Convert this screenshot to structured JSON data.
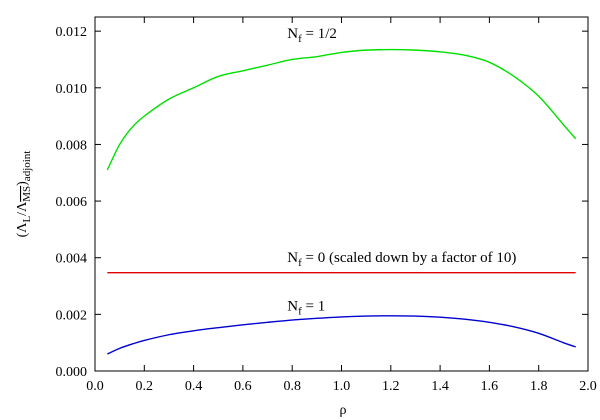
{
  "chart_data": {
    "type": "line",
    "xlabel": "ρ",
    "ylabel": "(Λ_L/Λ_MS)_adjoint",
    "xlim": [
      0.0,
      2.0
    ],
    "ylim": [
      0.0,
      0.0125
    ],
    "x_ticks": [
      "0.0",
      "0.2",
      "0.4",
      "0.6",
      "0.8",
      "1.0",
      "1.2",
      "1.4",
      "1.6",
      "1.8",
      "2.0"
    ],
    "y_ticks": [
      "0.000",
      "0.002",
      "0.004",
      "0.006",
      "0.008",
      "0.010",
      "0.012"
    ],
    "x_tick_values": [
      0.0,
      0.2,
      0.4,
      0.6,
      0.8,
      1.0,
      1.2,
      1.4,
      1.6,
      1.8,
      2.0
    ],
    "y_tick_values": [
      0.0,
      0.002,
      0.004,
      0.006,
      0.008,
      0.01,
      0.012
    ],
    "grid": false,
    "series": [
      {
        "name": "N_f = 1/2",
        "color": "#00e000",
        "x": [
          0.05,
          0.1,
          0.15,
          0.2,
          0.3,
          0.4,
          0.5,
          0.6,
          0.7,
          0.8,
          0.9,
          1.0,
          1.1,
          1.2,
          1.3,
          1.4,
          1.5,
          1.6,
          1.7,
          1.8,
          1.9,
          1.95
        ],
        "y": [
          0.0071,
          0.008,
          0.0086,
          0.009,
          0.0096,
          0.01,
          0.0104,
          0.0106,
          0.0108,
          0.011,
          0.0111,
          0.01125,
          0.01133,
          0.01135,
          0.01133,
          0.01127,
          0.01115,
          0.0109,
          0.0104,
          0.0097,
          0.0087,
          0.0082
        ]
      },
      {
        "name": "N_f = 0",
        "color": "#e00000",
        "x": [
          0.05,
          1.95
        ],
        "y": [
          0.00347,
          0.00347
        ]
      },
      {
        "name": "N_f = 1",
        "color": "#0000d0",
        "x": [
          0.05,
          0.1,
          0.15,
          0.2,
          0.3,
          0.4,
          0.5,
          0.6,
          0.7,
          0.8,
          0.9,
          1.0,
          1.1,
          1.2,
          1.3,
          1.4,
          1.5,
          1.6,
          1.7,
          1.8,
          1.9,
          1.95
        ],
        "y": [
          0.0006,
          0.0008,
          0.00095,
          0.00108,
          0.00128,
          0.00142,
          0.00153,
          0.00163,
          0.00172,
          0.0018,
          0.00186,
          0.00191,
          0.00194,
          0.00195,
          0.00194,
          0.0019,
          0.00183,
          0.00172,
          0.00156,
          0.00133,
          0.001,
          0.00085
        ]
      }
    ],
    "annotations": [
      {
        "id": "nf-half",
        "base": "N",
        "sub": "f",
        "rest": " = 1/2",
        "x": 0.78,
        "y": 0.01175
      },
      {
        "id": "nf-zero",
        "base": "N",
        "sub": "f",
        "rest": " = 0  (scaled down by a factor of 10)",
        "x": 0.78,
        "y": 0.00385
      },
      {
        "id": "nf-one",
        "base": "N",
        "sub": "f",
        "rest": " = 1",
        "x": 0.78,
        "y": 0.00213
      }
    ]
  }
}
